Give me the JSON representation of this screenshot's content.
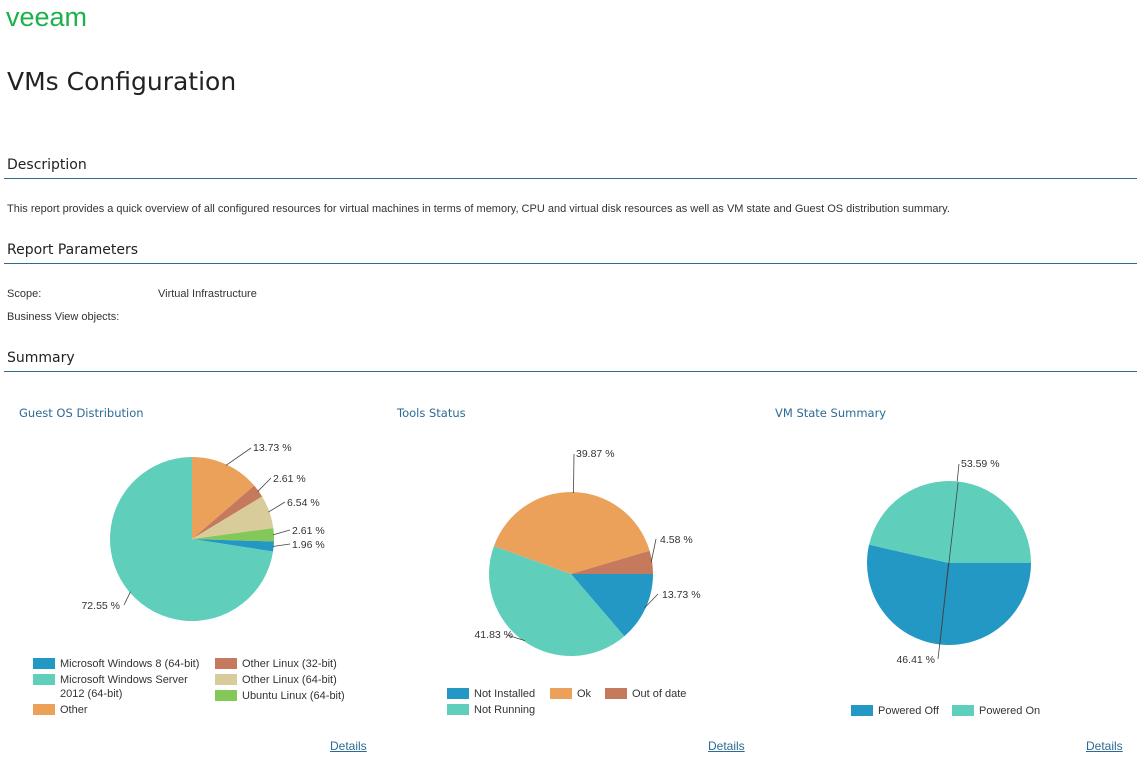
{
  "brand": {
    "logo_text": "veeam",
    "color": "#1db14b"
  },
  "page_title": "VMs Configuration",
  "sections": {
    "description": {
      "title": "Description",
      "text": "This report provides a quick overview of all configured resources for virtual machines in terms of memory, CPU and virtual disk resources as well as VM state and Guest OS distribution summary."
    },
    "report_parameters": {
      "title": "Report Parameters",
      "params": [
        {
          "label": "Scope:",
          "value": "Virtual Infrastructure"
        },
        {
          "label": "Business View objects:",
          "value": ""
        }
      ]
    },
    "summary": {
      "title": "Summary"
    }
  },
  "colors": {
    "rule": "#2e6b8e",
    "chart_title": "#2c6b94",
    "link": "#2c6b94"
  },
  "chart_data": [
    {
      "type": "pie",
      "title": "Guest OS Distribution",
      "start_angle_deg": 0,
      "direction": "clockwise",
      "slices": [
        {
          "label": "Other",
          "value": 13.73,
          "display": "13.73 %",
          "color": "#eba15a"
        },
        {
          "label": "Other Linux (32-bit)",
          "value": 2.61,
          "display": "2.61 %",
          "color": "#c57a5e"
        },
        {
          "label": "Other Linux (64-bit)",
          "value": 6.54,
          "display": "6.54 %",
          "color": "#d9cc9b"
        },
        {
          "label": "Ubuntu Linux (64-bit)",
          "value": 2.61,
          "display": "2.61 %",
          "color": "#84c859"
        },
        {
          "label": "Microsoft Windows 8 (64-bit)",
          "value": 1.96,
          "display": "1.96 %",
          "color": "#2398c4"
        },
        {
          "label": "Microsoft Windows Server 2012 (64-bit)",
          "value": 72.55,
          "display": "72.55 %",
          "color": "#5fcfbb"
        }
      ],
      "legend": [
        {
          "label": "Microsoft Windows 8 (64-bit)",
          "color": "#2398c4"
        },
        {
          "label": "Microsoft Windows Server 2012 (64-bit)",
          "color": "#5fcfbb"
        },
        {
          "label": "Other",
          "color": "#eba15a"
        },
        {
          "label": "Other Linux (32-bit)",
          "color": "#c57a5e"
        },
        {
          "label": "Other Linux (64-bit)",
          "color": "#d9cc9b"
        },
        {
          "label": "Ubuntu Linux (64-bit)",
          "color": "#84c859"
        }
      ],
      "legend_position": "bottom",
      "details_label": "Details"
    },
    {
      "type": "pie",
      "title": "Tools Status",
      "start_angle_deg": 90,
      "direction": "clockwise",
      "slices": [
        {
          "label": "Not Installed",
          "value": 13.73,
          "display": "13.73 %",
          "color": "#2398c4"
        },
        {
          "label": "Not Running",
          "value": 41.83,
          "display": "41.83 %",
          "color": "#5fcfbb"
        },
        {
          "label": "Ok",
          "value": 39.87,
          "display": "39.87 %",
          "color": "#eba15a"
        },
        {
          "label": "Out of date",
          "value": 4.58,
          "display": "4.58 %",
          "color": "#c57a5e"
        }
      ],
      "legend": [
        {
          "label": "Not Installed",
          "color": "#2398c4"
        },
        {
          "label": "Ok",
          "color": "#eba15a"
        },
        {
          "label": "Out of date",
          "color": "#c57a5e"
        },
        {
          "label": "Not Running",
          "color": "#5fcfbb"
        }
      ],
      "legend_position": "bottom",
      "details_label": "Details"
    },
    {
      "type": "pie",
      "title": "VM State Summary",
      "start_angle_deg": 90,
      "direction": "clockwise",
      "slices": [
        {
          "label": "Powered Off",
          "value": 53.59,
          "display": "53.59 %",
          "color": "#2398c4"
        },
        {
          "label": "Powered On",
          "value": 46.41,
          "display": "46.41 %",
          "color": "#5fcfbb"
        }
      ],
      "legend": [
        {
          "label": "Powered Off",
          "color": "#2398c4"
        },
        {
          "label": "Powered On",
          "color": "#5fcfbb"
        }
      ],
      "legend_position": "bottom",
      "details_label": "Details"
    }
  ]
}
